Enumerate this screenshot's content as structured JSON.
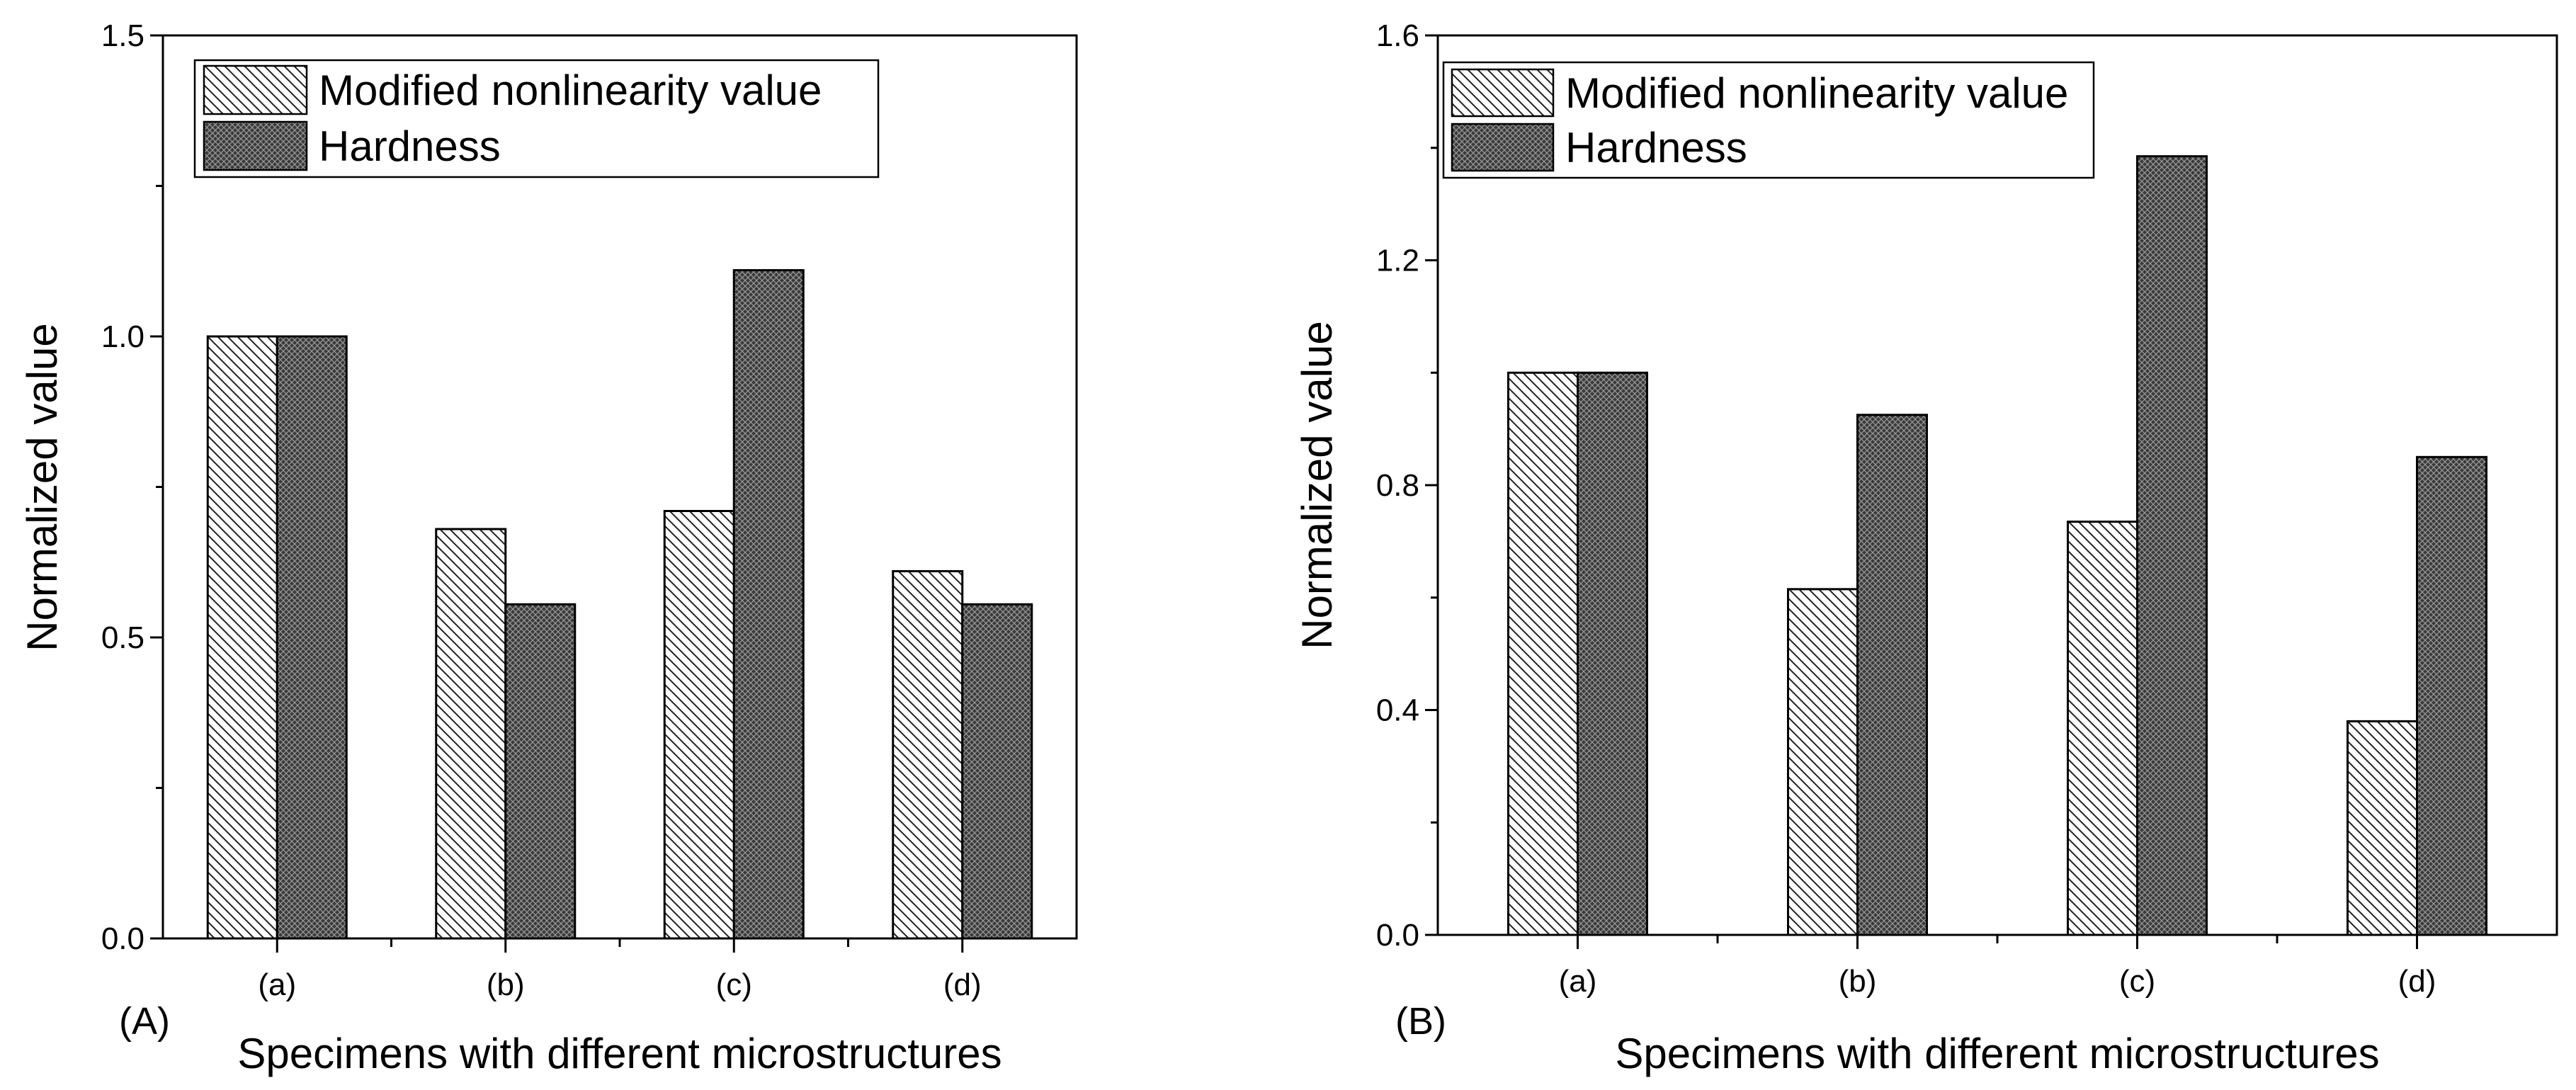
{
  "chart_data": [
    {
      "type": "bar",
      "panel_label": "(A)",
      "categories": [
        "(a)",
        "(b)",
        "(c)",
        "(d)"
      ],
      "series": [
        {
          "name": "Modified nonlinearity value",
          "pattern": "diagonal-hatch",
          "values": [
            1.0,
            0.68,
            0.71,
            0.61
          ]
        },
        {
          "name": "Hardness",
          "pattern": "crosshatch-dark",
          "values": [
            1.0,
            0.555,
            1.11,
            0.555
          ]
        }
      ],
      "xlabel": "Specimens with different microstructures",
      "ylabel": "Normalized value",
      "ylim": [
        0,
        1.5
      ],
      "yticks": [
        0.0,
        0.5,
        1.0,
        1.5
      ],
      "ytick_labels": [
        "0.0",
        "0.5",
        "1.0",
        "1.5"
      ],
      "legend_position": "top-left",
      "grid": false
    },
    {
      "type": "bar",
      "panel_label": "(B)",
      "categories": [
        "(a)",
        "(b)",
        "(c)",
        "(d)"
      ],
      "series": [
        {
          "name": "Modified nonlinearity value",
          "pattern": "diagonal-hatch",
          "values": [
            1.0,
            0.615,
            0.735,
            0.38
          ]
        },
        {
          "name": "Hardness",
          "pattern": "crosshatch-dark",
          "values": [
            1.0,
            0.925,
            1.385,
            0.85
          ]
        }
      ],
      "xlabel": "Specimens with different microstructures",
      "ylabel": "Normalized value",
      "ylim": [
        0,
        1.6
      ],
      "yticks": [
        0.0,
        0.4,
        0.8,
        1.2,
        1.6
      ],
      "ytick_labels": [
        "0.0",
        "0.4",
        "0.8",
        "1.2",
        "1.6"
      ],
      "legend_position": "top-left",
      "grid": false
    }
  ]
}
